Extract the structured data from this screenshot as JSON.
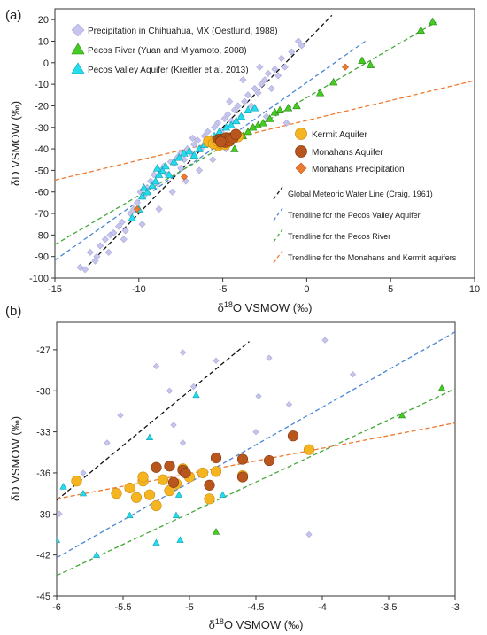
{
  "colors": {
    "chihuahua": "#c5c5ee",
    "pecos_river": "#44cc22",
    "pecos_aquifer": "#22ddee",
    "kermit": "#f5b521",
    "monahans": "#b8561d",
    "monahans_precip": "#ee7a30",
    "gmwl": "#111111",
    "trend_aquifer": "#4b86d6",
    "trend_river": "#45a83a",
    "trend_monahans": "#ee7a30"
  },
  "chart_data": [
    {
      "type": "scatter",
      "panel_label": "(a)",
      "xlabel": "δ18O VSMOW (‰)",
      "ylabel": "δD VSMOW (‰)",
      "xlim": [
        -15,
        10
      ],
      "ylim": [
        -100,
        25
      ],
      "xticks": [
        "-15",
        "-10",
        "-5",
        "0",
        "5",
        "10"
      ],
      "yticks": [
        "-100",
        "-90",
        "-80",
        "-70",
        "-60",
        "-50",
        "-40",
        "-30",
        "-20",
        "-10",
        "0",
        "10",
        "20"
      ],
      "legend_top": [
        "Precipitation in Chihuahua, MX (Oestlund, 1988)",
        "Pecos River (Yuan and Miyamoto, 2008)",
        "Pecos Valley Aquifer (Kreitler et al. 2013)"
      ],
      "legend_mid": [
        "Kermit Aquifer",
        "Monahans Aquifer",
        "Monahans Precipitation"
      ],
      "legend_lines": [
        "Global Meteoric Water Line (Craig, 1961)",
        "Trendline for the Pecos Valley Aquifer",
        "Trendline for the Pecos River",
        "Trendline for the Monahans and Kermit aquifers"
      ],
      "lines": [
        {
          "key": "gmwl",
          "x": [
            -13,
            1.5
          ]
        },
        {
          "key": "trend_aquifer",
          "x": [
            -15,
            3.5
          ]
        },
        {
          "key": "trend_river",
          "x": [
            -15,
            7.7
          ]
        },
        {
          "key": "trend_monahans",
          "x": [
            -15,
            10
          ]
        }
      ],
      "series": [
        {
          "key": "chihuahua",
          "marker": "diamond",
          "points": [
            [
              -13.5,
              -95
            ],
            [
              -13.2,
              -96
            ],
            [
              -12.9,
              -88
            ],
            [
              -12.5,
              -90
            ],
            [
              -12.3,
              -85
            ],
            [
              -12,
              -82
            ],
            [
              -11.7,
              -80
            ],
            [
              -11.5,
              -79
            ],
            [
              -11.2,
              -76
            ],
            [
              -11,
              -74
            ],
            [
              -10.8,
              -78
            ],
            [
              -10.5,
              -70
            ],
            [
              -10.3,
              -68
            ],
            [
              -10.1,
              -65
            ],
            [
              -9.9,
              -60
            ],
            [
              -9.7,
              -62
            ],
            [
              -9.5,
              -58
            ],
            [
              -9.3,
              -55
            ],
            [
              -9.1,
              -52
            ],
            [
              -8.9,
              -56
            ],
            [
              -8.7,
              -50
            ],
            [
              -8.5,
              -48
            ],
            [
              -8.3,
              -52
            ],
            [
              -8.1,
              -46
            ],
            [
              -7.9,
              -47
            ],
            [
              -7.7,
              -44
            ],
            [
              -7.5,
              -42
            ],
            [
              -7.3,
              -45
            ],
            [
              -7.1,
              -40
            ],
            [
              -6.9,
              -42
            ],
            [
              -6.7,
              -38
            ],
            [
              -6.5,
              -36
            ],
            [
              -6.3,
              -40
            ],
            [
              -6.1,
              -34
            ],
            [
              -5.9,
              -32
            ],
            [
              -5.7,
              -35
            ],
            [
              -5.5,
              -30
            ],
            [
              -5.3,
              -28
            ],
            [
              -5.1,
              -32
            ],
            [
              -4.9,
              -26
            ],
            [
              -4.7,
              -24
            ],
            [
              -4.5,
              -27
            ],
            [
              -4.3,
              -22
            ],
            [
              -4.1,
              -20
            ],
            [
              -3.9,
              -25
            ],
            [
              -3.7,
              -18
            ],
            [
              -3.5,
              -15
            ],
            [
              -3.3,
              -20
            ],
            [
              -3.1,
              -12
            ],
            [
              -2.9,
              -14
            ],
            [
              -2.7,
              -10
            ],
            [
              -2.5,
              -8
            ],
            [
              -2.3,
              -5
            ],
            [
              -2.1,
              -12
            ],
            [
              -1.9,
              -3
            ],
            [
              -1.7,
              -6
            ],
            [
              -1.5,
              2
            ],
            [
              -1.3,
              -2
            ],
            [
              -0.9,
              5
            ],
            [
              -0.5,
              10
            ],
            [
              -0.3,
              8
            ],
            [
              -11.8,
              -88
            ],
            [
              -10.9,
              -82
            ],
            [
              -9.8,
              -75
            ],
            [
              -8.8,
              -68
            ],
            [
              -8,
              -60
            ],
            [
              -7.2,
              -55
            ],
            [
              -6.4,
              -50
            ],
            [
              -5.6,
              -45
            ],
            [
              -4.8,
              -40
            ],
            [
              -4,
              -35
            ],
            [
              -3.2,
              -30
            ],
            [
              -2.4,
              -25
            ],
            [
              -12.6,
              -92
            ],
            [
              -7.5,
              -49
            ],
            [
              -6.8,
              -35
            ],
            [
              -4.6,
              -18
            ],
            [
              -3.8,
              -8
            ],
            [
              -2.8,
              -2
            ],
            [
              -1.2,
              -28
            ]
          ]
        },
        {
          "key": "pecos_river",
          "marker": "triangle",
          "points": [
            [
              -5.2,
              -34
            ],
            [
              -4.8,
              -35
            ],
            [
              -4.4,
              -36
            ],
            [
              -4.1,
              -33
            ],
            [
              -3.8,
              -34
            ],
            [
              -3.5,
              -32
            ],
            [
              -3.2,
              -30
            ],
            [
              -2.9,
              -29
            ],
            [
              -2.6,
              -28
            ],
            [
              -2.2,
              -26
            ],
            [
              -1.9,
              -23
            ],
            [
              -1.6,
              -22
            ],
            [
              -1.1,
              -21
            ],
            [
              -0.6,
              -20
            ],
            [
              0.8,
              -14
            ],
            [
              1.6,
              -9
            ],
            [
              3.3,
              1
            ],
            [
              3.8,
              -1
            ],
            [
              6.8,
              15
            ],
            [
              7.5,
              19
            ],
            [
              -4.3,
              -40
            ],
            [
              -5,
              -38
            ]
          ]
        },
        {
          "key": "pecos_aquifer",
          "marker": "triangle",
          "points": [
            [
              -10.4,
              -72
            ],
            [
              -10,
              -68
            ],
            [
              -9.8,
              -62
            ],
            [
              -9.5,
              -60
            ],
            [
              -9.2,
              -57
            ],
            [
              -9,
              -55
            ],
            [
              -8.8,
              -52
            ],
            [
              -8.6,
              -50
            ],
            [
              -8.4,
              -48
            ],
            [
              -8.2,
              -52
            ],
            [
              -7.9,
              -46
            ],
            [
              -7.6,
              -44
            ],
            [
              -7.3,
              -42
            ],
            [
              -7,
              -41
            ],
            [
              -6.7,
              -43
            ],
            [
              -6.4,
              -40
            ],
            [
              -6.1,
              -38
            ],
            [
              -5.8,
              -36
            ],
            [
              -5.5,
              -34
            ],
            [
              -5.2,
              -32
            ],
            [
              -4.8,
              -30
            ],
            [
              -4.5,
              -29
            ],
            [
              -4.2,
              -27
            ],
            [
              -3.9,
              -25
            ],
            [
              -3.5,
              -22
            ],
            [
              -3.1,
              -21
            ],
            [
              -9.7,
              -58
            ],
            [
              -8.9,
              -49
            ]
          ]
        },
        {
          "key": "kermit",
          "marker": "circle",
          "points": [
            [
              -5.85,
              -36.6
            ],
            [
              -5.45,
              -37.1
            ],
            [
              -5.4,
              -37.8
            ],
            [
              -5.35,
              -36.6
            ],
            [
              -5.3,
              -37.6
            ],
            [
              -5.25,
              -38.4
            ],
            [
              -5.2,
              -36.5
            ],
            [
              -5.15,
              -37.3
            ],
            [
              -5.1,
              -36.8
            ],
            [
              -5.05,
              -35.7
            ],
            [
              -5,
              -36.3
            ],
            [
              -4.9,
              -36
            ],
            [
              -4.85,
              -37.9
            ],
            [
              -4.8,
              -35.9
            ],
            [
              -4.6,
              -36.2
            ],
            [
              -4.1,
              -34.3
            ],
            [
              -5.55,
              -37.5
            ],
            [
              -5.35,
              -36.3
            ]
          ]
        },
        {
          "key": "monahans",
          "marker": "circle",
          "points": [
            [
              -5.25,
              -35.6
            ],
            [
              -5.15,
              -35.5
            ],
            [
              -5.1,
              -36.2
            ],
            [
              -5.05,
              -35.8
            ],
            [
              -5.03,
              -36
            ],
            [
              -4.85,
              -36.9
            ],
            [
              -4.8,
              -34.9
            ],
            [
              -4.6,
              -35
            ],
            [
              -4.6,
              -36.3
            ],
            [
              -4.4,
              -35.1
            ],
            [
              -4.22,
              -33.3
            ],
            [
              -5.12,
              -36.7
            ]
          ]
        },
        {
          "key": "monahans_precip",
          "marker": "diamond",
          "points": [
            [
              -10.1,
              -68
            ],
            [
              -7.3,
              -53
            ],
            [
              2.3,
              -2
            ]
          ]
        }
      ]
    },
    {
      "type": "scatter",
      "panel_label": "(b)",
      "xlabel": "δ18O VSMOW (‰)",
      "ylabel": "δD VSMOW (‰)",
      "xlim": [
        -6,
        -3
      ],
      "ylim": [
        -45,
        -25
      ],
      "xticks": [
        "-6",
        "-5.5",
        "-5",
        "-4.5",
        "-4",
        "-3.5",
        "-3"
      ],
      "yticks": [
        "-45",
        "-42",
        "-39",
        "-36",
        "-33",
        "-30",
        "-27"
      ],
      "lines": [
        {
          "key": "gmwl",
          "x": [
            -6,
            -4.55
          ]
        },
        {
          "key": "trend_aquifer",
          "x": [
            -6,
            -3
          ]
        },
        {
          "key": "trend_river",
          "x": [
            -6,
            -3
          ]
        },
        {
          "key": "trend_monahans",
          "x": [
            -6,
            -3
          ]
        }
      ],
      "series": [
        {
          "key": "chihuahua",
          "marker": "diamond",
          "points": [
            [
              -5.98,
              -39
            ],
            [
              -5.8,
              -36
            ],
            [
              -5.62,
              -33.8
            ],
            [
              -5.52,
              -31.8
            ],
            [
              -5.25,
              -28.2
            ],
            [
              -5.15,
              -30
            ],
            [
              -5.12,
              -32.5
            ],
            [
              -5.05,
              -33.8
            ],
            [
              -5.05,
              -27.2
            ],
            [
              -4.97,
              -29.7
            ],
            [
              -4.8,
              -27.8
            ],
            [
              -4.5,
              -33
            ],
            [
              -4.48,
              -30.4
            ],
            [
              -4.4,
              -27.6
            ],
            [
              -4.25,
              -31
            ],
            [
              -4.1,
              -40.5
            ],
            [
              -3.98,
              -26.3
            ],
            [
              -3.77,
              -28.8
            ]
          ]
        },
        {
          "key": "pecos_river",
          "marker": "triangle",
          "points": [
            [
              -4.8,
              -40.3
            ],
            [
              -3.4,
              -31.8
            ],
            [
              -3.1,
              -29.8
            ]
          ]
        },
        {
          "key": "pecos_aquifer",
          "marker": "triangle",
          "points": [
            [
              -6,
              -40.9
            ],
            [
              -5.95,
              -37
            ],
            [
              -5.8,
              -37.5
            ],
            [
              -5.7,
              -42
            ],
            [
              -5.45,
              -39.1
            ],
            [
              -5.3,
              -33.4
            ],
            [
              -5.25,
              -41.1
            ],
            [
              -5.1,
              -39.1
            ],
            [
              -5.08,
              -37.6
            ],
            [
              -5.07,
              -40.9
            ],
            [
              -4.95,
              -30.3
            ],
            [
              -4.75,
              -37.6
            ]
          ]
        },
        {
          "key": "kermit",
          "marker": "circle",
          "points": [
            [
              -5.85,
              -36.6
            ],
            [
              -5.45,
              -37.1
            ],
            [
              -5.4,
              -37.8
            ],
            [
              -5.35,
              -36.6
            ],
            [
              -5.35,
              -36.3
            ],
            [
              -5.3,
              -37.6
            ],
            [
              -5.25,
              -38.4
            ],
            [
              -5.2,
              -36.5
            ],
            [
              -5.15,
              -37.3
            ],
            [
              -5.1,
              -36.8
            ],
            [
              -5.05,
              -35.7
            ],
            [
              -5,
              -36.3
            ],
            [
              -4.9,
              -36
            ],
            [
              -4.85,
              -37.9
            ],
            [
              -4.8,
              -35.9
            ],
            [
              -4.6,
              -36.2
            ],
            [
              -4.1,
              -34.3
            ],
            [
              -5.55,
              -37.5
            ]
          ]
        },
        {
          "key": "monahans",
          "marker": "circle",
          "points": [
            [
              -5.25,
              -35.6
            ],
            [
              -5.15,
              -35.5
            ],
            [
              -5.12,
              -36.7
            ],
            [
              -5.05,
              -35.8
            ],
            [
              -5.03,
              -36
            ],
            [
              -4.85,
              -36.9
            ],
            [
              -4.8,
              -34.9
            ],
            [
              -4.6,
              -35
            ],
            [
              -4.6,
              -36.3
            ],
            [
              -4.4,
              -35.1
            ],
            [
              -4.22,
              -33.3
            ]
          ]
        }
      ]
    }
  ]
}
